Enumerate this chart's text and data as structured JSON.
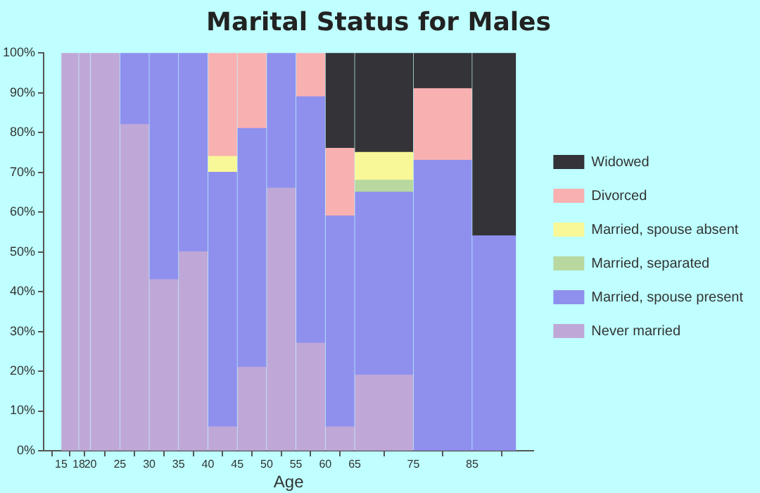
{
  "chart_data": {
    "type": "bar",
    "stacked": true,
    "title": "Marital Status for Males",
    "xlabel": "Age",
    "x": [
      16.5,
      19,
      22.5,
      27.5,
      32.5,
      37.5,
      42.5,
      47.5,
      52.5,
      57.5,
      62.5,
      70,
      80,
      88.75
    ],
    "xlim": [
      15,
      92.5
    ],
    "xticks": [
      15,
      18,
      20,
      25,
      30,
      35,
      40,
      45,
      50,
      55,
      60,
      65,
      75,
      85
    ],
    "ylim": [
      0,
      100
    ],
    "yticks": [
      {
        "value": 0,
        "label": "0%"
      },
      {
        "value": 10,
        "label": "10%"
      },
      {
        "value": 20,
        "label": "20%"
      },
      {
        "value": 30,
        "label": "30%"
      },
      {
        "value": 40,
        "label": "40%"
      },
      {
        "value": 50,
        "label": "50%"
      },
      {
        "value": 60,
        "label": "60%"
      },
      {
        "value": 70,
        "label": "70%"
      },
      {
        "value": 80,
        "label": "80%"
      },
      {
        "value": 90,
        "label": "90%"
      },
      {
        "value": 100,
        "label": "100%"
      }
    ],
    "grid": false,
    "legend": "right",
    "series": [
      {
        "name": "Never married",
        "color": "#bfa8d8",
        "values": [
          100,
          100,
          100,
          82,
          43,
          50,
          6,
          21,
          66,
          27,
          6,
          19,
          null,
          null
        ]
      },
      {
        "name": "Married, spouse present",
        "color": "#8f90ee",
        "values": [
          null,
          null,
          null,
          18,
          57,
          50,
          64,
          60,
          34,
          62,
          53,
          46,
          73,
          54
        ]
      },
      {
        "name": "Married, separated",
        "color": "#b8d8a0",
        "values": [
          null,
          null,
          null,
          null,
          null,
          null,
          null,
          null,
          null,
          null,
          null,
          3,
          null,
          null
        ]
      },
      {
        "name": "Married, spouse absent",
        "color": "#f8f898",
        "values": [
          null,
          null,
          null,
          null,
          null,
          null,
          4,
          null,
          null,
          null,
          null,
          7,
          null,
          null
        ]
      },
      {
        "name": "Divorced",
        "color": "#f8b0b0",
        "values": [
          null,
          null,
          null,
          null,
          null,
          null,
          26,
          19,
          null,
          11,
          17,
          null,
          18,
          null
        ]
      },
      {
        "name": "Widowed",
        "color": "#333338",
        "values": [
          null,
          null,
          null,
          null,
          null,
          null,
          null,
          null,
          null,
          null,
          24,
          25,
          9,
          46
        ]
      }
    ]
  }
}
